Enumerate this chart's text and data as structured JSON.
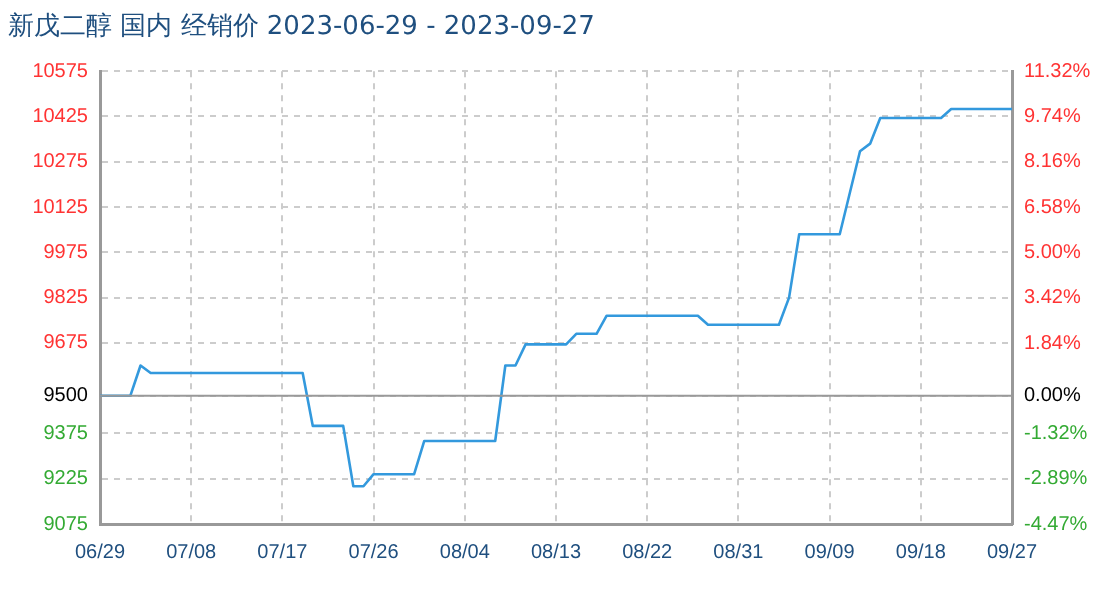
{
  "chart_data": {
    "type": "line",
    "title": "新戊二醇 国内 经销价 2023-06-29 - 2023-09-27",
    "x": [
      "2023-06-29",
      "2023-07-02",
      "2023-07-03",
      "2023-07-04",
      "2023-07-19",
      "2023-07-20",
      "2023-07-23",
      "2023-07-24",
      "2023-07-25",
      "2023-07-26",
      "2023-07-30",
      "2023-07-31",
      "2023-08-07",
      "2023-08-08",
      "2023-08-09",
      "2023-08-10",
      "2023-08-14",
      "2023-08-15",
      "2023-08-17",
      "2023-08-18",
      "2023-08-27",
      "2023-08-28",
      "2023-09-04",
      "2023-09-05",
      "2023-09-06",
      "2023-09-10",
      "2023-09-12",
      "2023-09-13",
      "2023-09-14",
      "2023-09-20",
      "2023-09-21",
      "2023-09-27"
    ],
    "series": [
      {
        "color": "#3399dd",
        "values": [
          9500,
          9500,
          9600,
          9575,
          9575,
          9400,
          9400,
          9200,
          9200,
          9240,
          9240,
          9350,
          9350,
          9600,
          9600,
          9670,
          9670,
          9705,
          9705,
          9765,
          9765,
          9735,
          9735,
          9825,
          10035,
          10035,
          10310,
          10335,
          10420,
          10420,
          10450,
          10450
        ]
      }
    ],
    "xlim": [
      "2023-06-29",
      "2023-09-27"
    ],
    "xticks": [
      {
        "value": "2023-06-29",
        "label": "06/29"
      },
      {
        "value": "2023-07-08",
        "label": "07/08"
      },
      {
        "value": "2023-07-17",
        "label": "07/17"
      },
      {
        "value": "2023-07-26",
        "label": "07/26"
      },
      {
        "value": "2023-08-04",
        "label": "08/04"
      },
      {
        "value": "2023-08-13",
        "label": "08/13"
      },
      {
        "value": "2023-08-22",
        "label": "08/22"
      },
      {
        "value": "2023-08-31",
        "label": "08/31"
      },
      {
        "value": "2023-09-09",
        "label": "09/09"
      },
      {
        "value": "2023-09-18",
        "label": "09/18"
      },
      {
        "value": "2023-09-27",
        "label": "09/27"
      }
    ],
    "ylim": [
      9075,
      10575
    ],
    "yticks": [
      9075,
      9225,
      9375,
      9500,
      9675,
      9825,
      9975,
      10125,
      10275,
      10425,
      10575
    ],
    "y2lim": [
      -4.47,
      11.32
    ],
    "y2ticks": [
      {
        "value": -4.47,
        "label": "-4.47%"
      },
      {
        "value": -2.89,
        "label": "-2.89%"
      },
      {
        "value": -1.32,
        "label": "-1.32%"
      },
      {
        "value": 0,
        "label": "0.00%"
      },
      {
        "value": 1.84,
        "label": "1.84%"
      },
      {
        "value": 3.42,
        "label": "3.42%"
      },
      {
        "value": 5,
        "label": "5.00%"
      },
      {
        "value": 6.58,
        "label": "6.58%"
      },
      {
        "value": 8.16,
        "label": "8.16%"
      },
      {
        "value": 9.74,
        "label": "9.74%"
      },
      {
        "value": 11.32,
        "label": "11.32%"
      }
    ],
    "ref_lines": [
      {
        "axis": "y",
        "value": 9500,
        "color": "#999999"
      }
    ],
    "grid": true,
    "legend": false,
    "marker": "none",
    "line_style": "solid"
  }
}
